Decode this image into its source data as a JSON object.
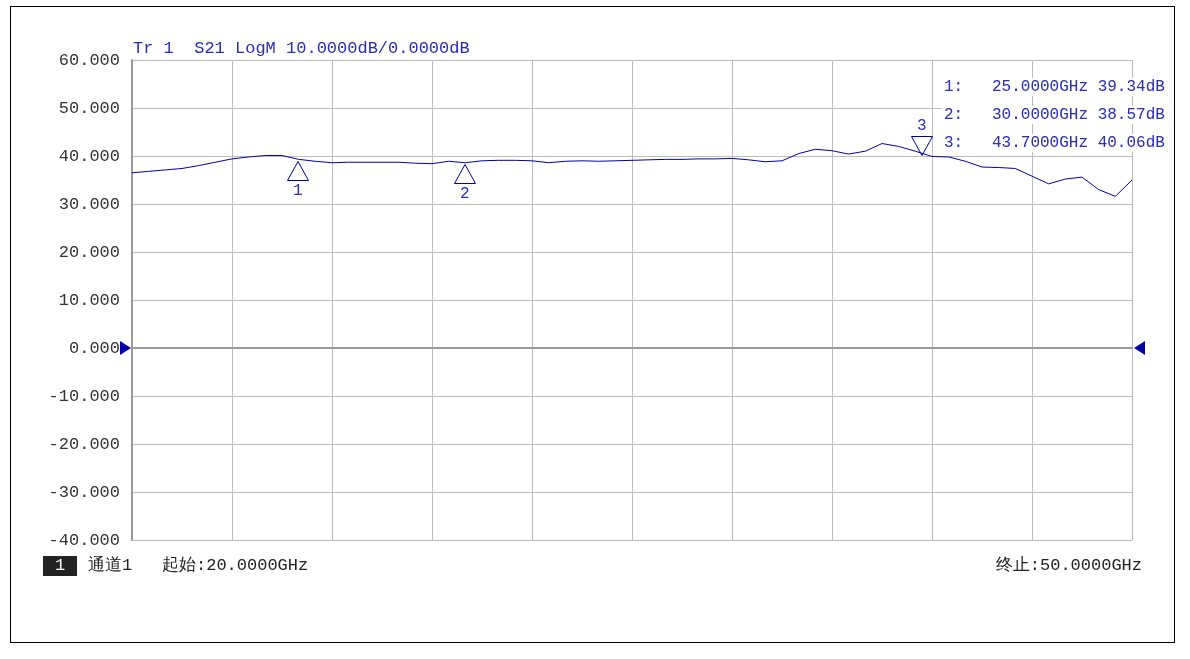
{
  "chart_data": {
    "type": "line",
    "title": "Tr 1  S21 LogM 10.0000dB/0.0000dB",
    "categories": [
      null,
      null,
      null,
      null,
      null,
      null,
      null,
      null,
      null,
      null,
      null,
      null,
      null,
      null,
      null,
      null,
      null,
      null,
      null,
      null,
      null,
      null,
      null,
      null,
      null,
      null,
      null,
      null,
      null,
      null,
      null,
      null,
      null,
      null,
      null,
      null,
      null,
      null,
      null,
      null,
      null,
      null,
      null,
      null,
      null,
      null,
      null,
      null,
      null,
      null,
      null,
      null,
      null,
      null,
      null,
      null,
      null,
      null,
      null,
      null,
      null
    ],
    "series": [
      {
        "color": "#0000aa",
        "values": [
          36.5,
          36.8,
          37.1,
          37.4,
          38.0,
          38.7,
          39.4,
          39.8,
          40.1,
          40.1,
          39.3,
          38.9,
          38.6,
          38.7,
          38.7,
          38.7,
          38.7,
          38.5,
          38.4,
          38.9,
          38.6,
          39.0,
          39.1,
          39.1,
          39.0,
          38.6,
          38.9,
          39.0,
          38.9,
          39.0,
          39.1,
          39.2,
          39.3,
          39.3,
          39.4,
          39.4,
          39.5,
          39.2,
          38.8,
          39.0,
          40.5,
          41.4,
          41.1,
          40.4,
          41.0,
          42.6,
          42.0,
          41.0,
          39.9,
          39.8,
          38.9,
          37.7,
          37.6,
          37.4,
          35.8,
          34.2,
          35.2,
          35.6,
          33.0,
          31.6,
          35.0
        ]
      }
    ],
    "ylim": [
      -40,
      60
    ],
    "yticks": [
      {
        "value": -40,
        "label": "-40.000"
      },
      {
        "value": -30,
        "label": "-30.000"
      },
      {
        "value": -20,
        "label": "-20.000"
      },
      {
        "value": -10,
        "label": "-10.000"
      },
      {
        "value": 0,
        "label": "0.000"
      },
      {
        "value": 10,
        "label": "10.000"
      },
      {
        "value": 20,
        "label": "20.000"
      },
      {
        "value": 30,
        "label": "30.000"
      },
      {
        "value": 40,
        "label": "40.000"
      },
      {
        "value": 50,
        "label": "50.000"
      },
      {
        "value": 60,
        "label": "60.000"
      }
    ],
    "grid": true,
    "marker": "none",
    "line_style": "solid",
    "annotations": [
      "1",
      "2",
      "3",
      "1:   25.0000GHz 39.34dB",
      "2:   30.0000GHz 38.57dB",
      "3:   43.7000GHz 40.06dB",
      "1",
      "通道1",
      "起始:20.0000GHz",
      "终止:50.0000GHz"
    ]
  }
}
